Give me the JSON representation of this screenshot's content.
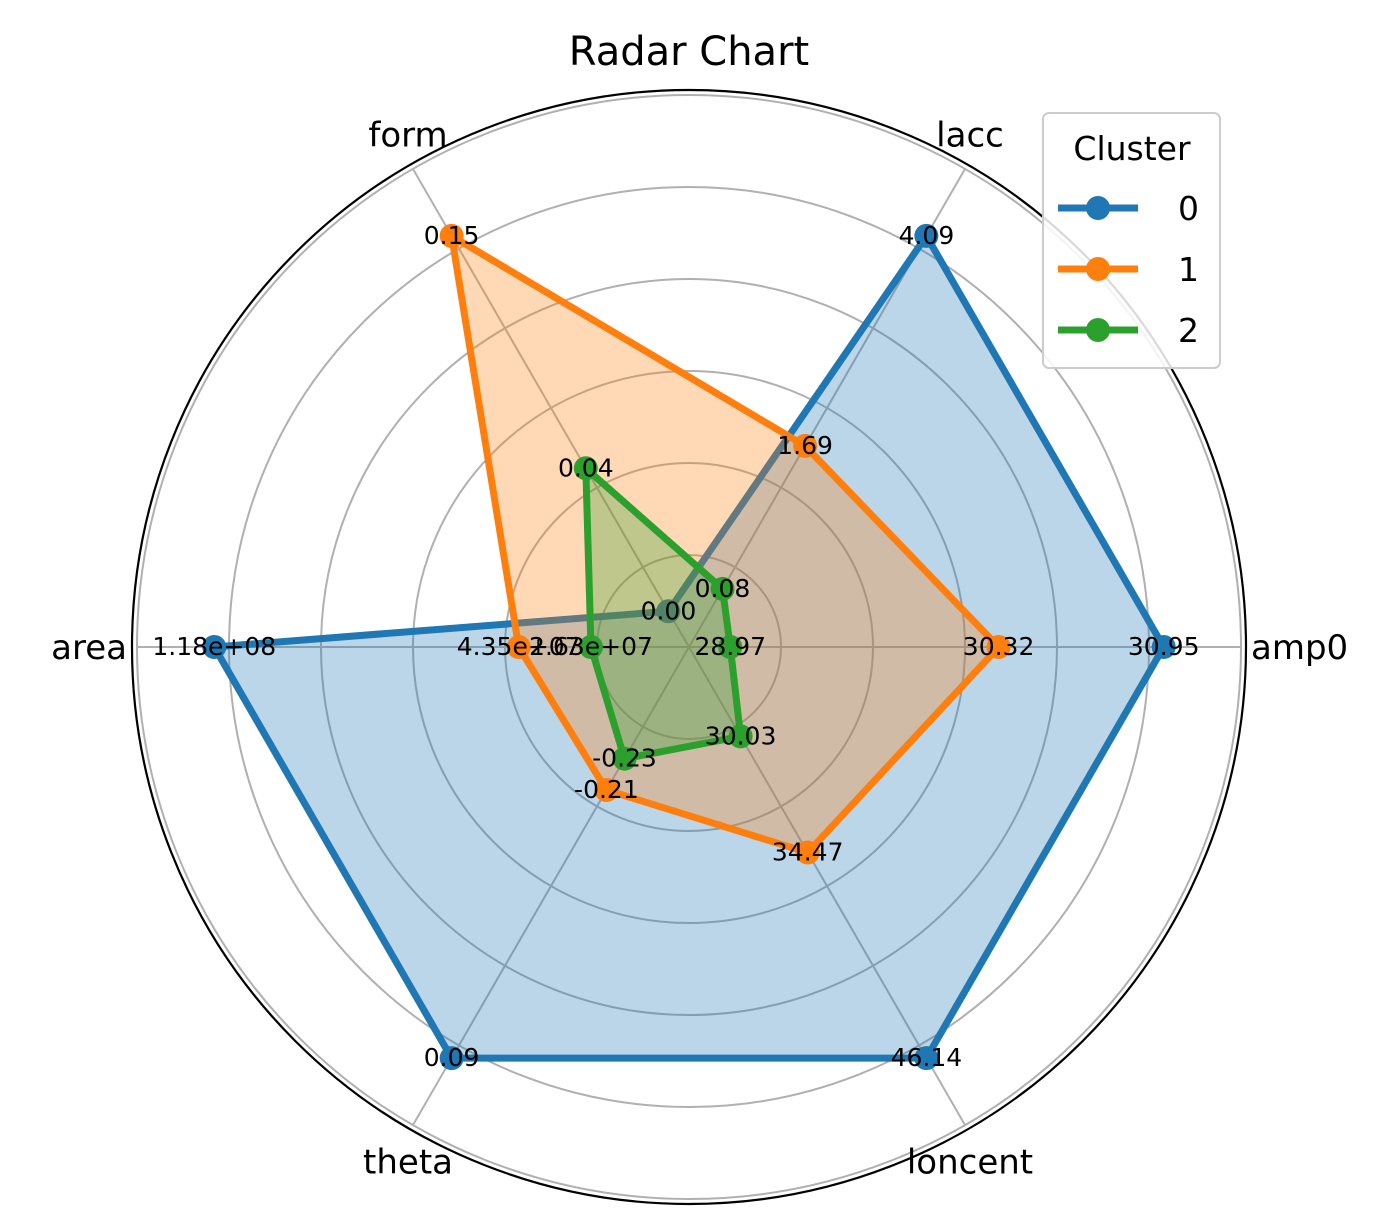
{
  "chart_data": {
    "type": "radar",
    "title": "Radar Chart",
    "axes": [
      "amp0",
      "lacc",
      "form",
      "area",
      "theta",
      "loncent"
    ],
    "grid": true,
    "legend": {
      "title": "Cluster",
      "placement": "top-right"
    },
    "series": [
      {
        "name": "0",
        "color": "#1f77b4",
        "values": [
          30.95,
          4.09,
          0.0,
          118000000.0,
          0.09,
          46.14
        ],
        "labels": [
          "30.95",
          "4.09",
          "0.00",
          "1.18e+08",
          "0.09",
          "46.14"
        ],
        "radial_fraction": [
          0.92,
          0.92,
          0.08,
          0.92,
          0.92,
          0.92
        ]
      },
      {
        "name": "1",
        "color": "#ff7f0e",
        "values": [
          30.32,
          1.69,
          0.15,
          43500000.0,
          -0.21,
          34.47
        ],
        "labels": [
          "30.32",
          "1.69",
          "0.15",
          "4.35e+07",
          "-0.21",
          "34.47"
        ],
        "radial_fraction": [
          0.6,
          0.45,
          0.92,
          0.33,
          0.32,
          0.46
        ]
      },
      {
        "name": "2",
        "color": "#2ca02c",
        "values": [
          28.97,
          0.08,
          0.04,
          26300000.0,
          -0.23,
          30.03
        ],
        "labels": [
          "28.97",
          "0.08",
          "0.04",
          "2.63e+07",
          "-0.23",
          "30.03"
        ],
        "radial_fraction": [
          0.08,
          0.13,
          0.4,
          0.19,
          0.25,
          0.2
        ]
      }
    ]
  }
}
